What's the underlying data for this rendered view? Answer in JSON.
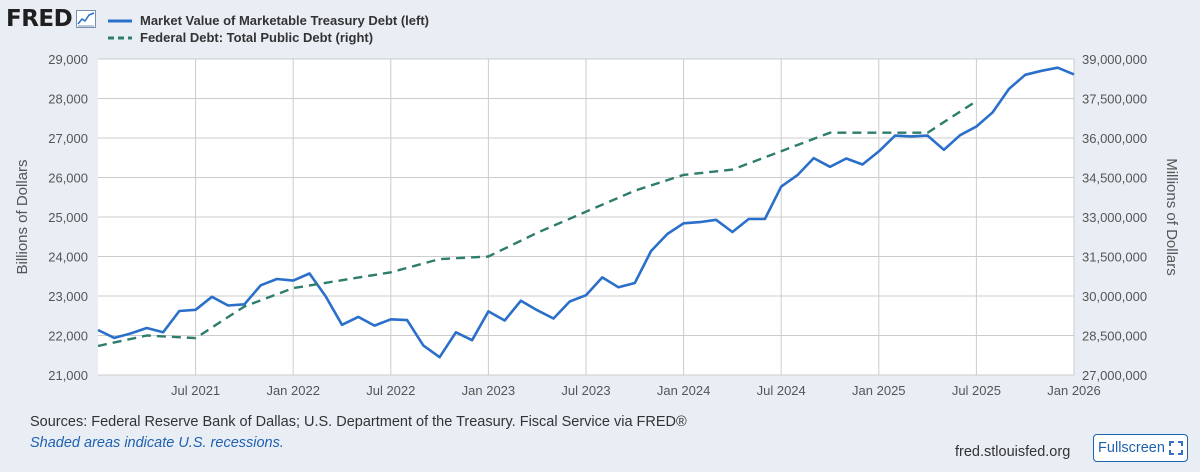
{
  "logo": {
    "text": "FRED"
  },
  "colors": {
    "series1": "#2a6fc9",
    "series2": "#2e7d6c",
    "gridline": "#cccccc",
    "accent": "#1f61b0"
  },
  "footer": {
    "sources": "Sources: Federal Reserve Bank of Dallas; U.S. Department of the Treasury. Fiscal Service via FRED®",
    "recession_note": "Shaded areas indicate U.S. recessions.",
    "url": "fred.stlouisfed.org",
    "fullscreen_label": "Fullscreen"
  },
  "chart_data": {
    "type": "line",
    "title": "",
    "grid": true,
    "legend": "top-left",
    "xlabel": "",
    "x_range": [
      "2021-01",
      "2026-01"
    ],
    "x_ticks": [
      "Jul 2021",
      "Jan 2022",
      "Jul 2022",
      "Jan 2023",
      "Jul 2023",
      "Jan 2024",
      "Jul 2024",
      "Jan 2025",
      "Jul 2025",
      "Jan 2026"
    ],
    "left_axis": {
      "label": "Billions of Dollars",
      "range": [
        21000,
        29000
      ],
      "ticks": [
        "21,000",
        "22,000",
        "23,000",
        "24,000",
        "25,000",
        "26,000",
        "27,000",
        "28,000",
        "29,000"
      ]
    },
    "right_axis": {
      "label": "Millions of Dollars",
      "range": [
        27000000,
        39000000
      ],
      "ticks": [
        "27,000,000",
        "28,500,000",
        "30,000,000",
        "31,500,000",
        "33,000,000",
        "34,500,000",
        "36,000,000",
        "37,500,000",
        "39,000,000"
      ]
    },
    "series": [
      {
        "name": "Market Value of Marketable Treasury Debt (left)",
        "axis": "left",
        "style": "solid",
        "x": [
          "2021-01",
          "2021-02",
          "2021-03",
          "2021-04",
          "2021-05",
          "2021-06",
          "2021-07",
          "2021-08",
          "2021-09",
          "2021-10",
          "2021-11",
          "2021-12",
          "2022-01",
          "2022-02",
          "2022-03",
          "2022-04",
          "2022-05",
          "2022-06",
          "2022-07",
          "2022-08",
          "2022-09",
          "2022-10",
          "2022-11",
          "2022-12",
          "2023-01",
          "2023-02",
          "2023-03",
          "2023-04",
          "2023-05",
          "2023-06",
          "2023-07",
          "2023-08",
          "2023-09",
          "2023-10",
          "2023-11",
          "2023-12",
          "2024-01",
          "2024-02",
          "2024-03",
          "2024-04",
          "2024-05",
          "2024-06",
          "2024-07",
          "2024-08",
          "2024-09",
          "2024-10",
          "2024-11",
          "2024-12",
          "2025-01",
          "2025-02",
          "2025-03",
          "2025-04",
          "2025-05",
          "2025-06",
          "2025-07",
          "2025-08",
          "2025-09",
          "2025-10",
          "2025-11",
          "2025-12",
          "2026-01"
        ],
        "values": [
          22140,
          21940,
          22050,
          22190,
          22080,
          22620,
          22650,
          22980,
          22760,
          22790,
          23270,
          23430,
          23390,
          23570,
          22990,
          22270,
          22470,
          22250,
          22410,
          22390,
          21750,
          21450,
          22080,
          21880,
          22610,
          22380,
          22880,
          22640,
          22430,
          22860,
          23020,
          23470,
          23220,
          23330,
          24140,
          24570,
          24840,
          24870,
          24930,
          24620,
          24950,
          24950,
          25770,
          26060,
          26490,
          26270,
          26480,
          26330,
          26660,
          27060,
          27040,
          27060,
          26700,
          27070,
          27290,
          27650,
          28240,
          28600,
          28700,
          28780,
          28610
        ]
      },
      {
        "name": "Federal Debt: Total Public Debt (right)",
        "axis": "right",
        "style": "dashed",
        "x": [
          "2021-01",
          "2021-04",
          "2021-07",
          "2021-10",
          "2022-01",
          "2022-04",
          "2022-07",
          "2022-10",
          "2023-01",
          "2023-04",
          "2023-07",
          "2023-10",
          "2024-01",
          "2024-04",
          "2024-07",
          "2024-10",
          "2025-01",
          "2025-04",
          "2025-07"
        ],
        "values": [
          28100000,
          28500000,
          28400000,
          29600000,
          30300000,
          30600000,
          30900000,
          31400000,
          31500000,
          32400000,
          33200000,
          34000000,
          34600000,
          34800000,
          35500000,
          36200000,
          36200000,
          36200000,
          37400000
        ]
      }
    ]
  }
}
